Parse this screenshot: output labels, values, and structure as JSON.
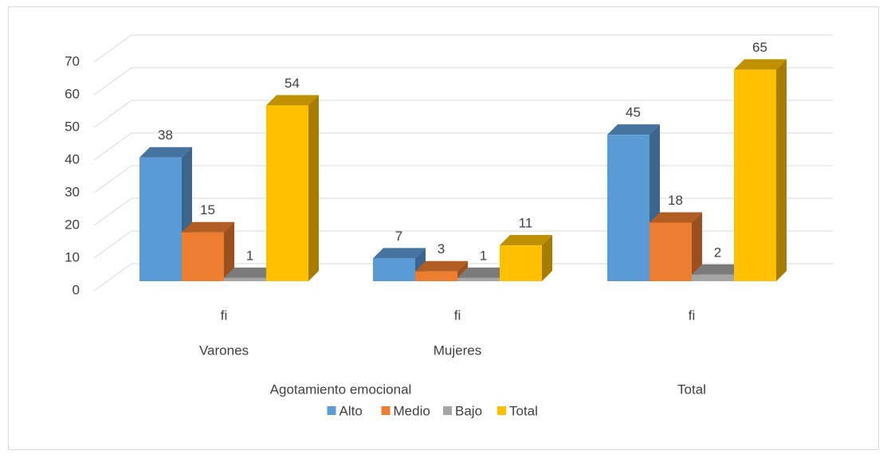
{
  "chart_data": {
    "type": "bar3d",
    "categories": [
      "fi",
      "fi",
      "fi"
    ],
    "subgroups": [
      "Varones",
      "Mujeres",
      null
    ],
    "groups": [
      {
        "label": "Agotamiento emocional",
        "span": 2
      },
      {
        "label": "Total",
        "span": 1
      }
    ],
    "series": [
      {
        "name": "Alto",
        "color": "#5b9bd5",
        "values": [
          38,
          7,
          45
        ]
      },
      {
        "name": "Medio",
        "color": "#ed7d31",
        "values": [
          15,
          3,
          18
        ]
      },
      {
        "name": "Bajo",
        "color": "#a5a5a5",
        "values": [
          1,
          1,
          2
        ]
      },
      {
        "name": "Total",
        "color": "#ffc000",
        "values": [
          54,
          11,
          65
        ]
      }
    ],
    "ylim": [
      0,
      70
    ],
    "yticks": [
      0,
      10,
      20,
      30,
      40,
      50,
      60,
      70
    ],
    "grid": true,
    "legend": "bottom"
  }
}
